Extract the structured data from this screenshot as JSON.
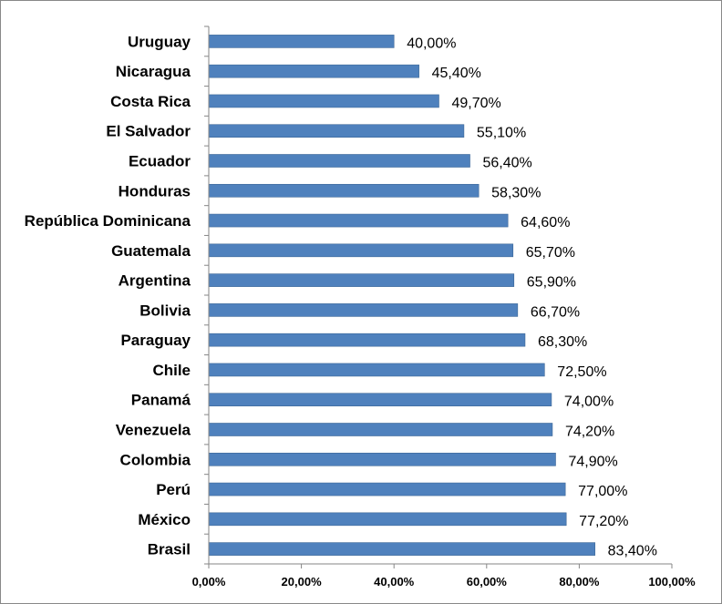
{
  "chart_data": {
    "type": "bar",
    "orientation": "horizontal",
    "categories": [
      "Uruguay",
      "Nicaragua",
      "Costa Rica",
      "El Salvador",
      "Ecuador",
      "Honduras",
      "República Dominicana",
      "Guatemala",
      "Argentina",
      "Bolivia",
      "Paraguay",
      "Chile",
      "Panamá",
      "Venezuela",
      "Colombia",
      "Perú",
      "México",
      "Brasil"
    ],
    "values": [
      40.0,
      45.4,
      49.7,
      55.1,
      56.4,
      58.3,
      64.6,
      65.7,
      65.9,
      66.7,
      68.3,
      72.5,
      74.0,
      74.2,
      74.9,
      77.0,
      77.2,
      83.4
    ],
    "data_labels": [
      "40,00%",
      "45,40%",
      "49,70%",
      "55,10%",
      "56,40%",
      "58,30%",
      "64,60%",
      "65,70%",
      "65,90%",
      "66,70%",
      "68,30%",
      "72,50%",
      "74,00%",
      "74,20%",
      "74,90%",
      "77,00%",
      "77,20%",
      "83,40%"
    ],
    "x_ticks": [
      0,
      20,
      40,
      60,
      80,
      100
    ],
    "x_tick_labels": [
      "0,00%",
      "20,00%",
      "40,00%",
      "60,00%",
      "80,00%",
      "100,00%"
    ],
    "xlim": [
      0,
      100
    ],
    "title": "",
    "xlabel": "",
    "ylabel": "",
    "grid": false,
    "legend": "none",
    "bar_color": "#4F81BD",
    "bar_border_color": "#3C6696"
  }
}
